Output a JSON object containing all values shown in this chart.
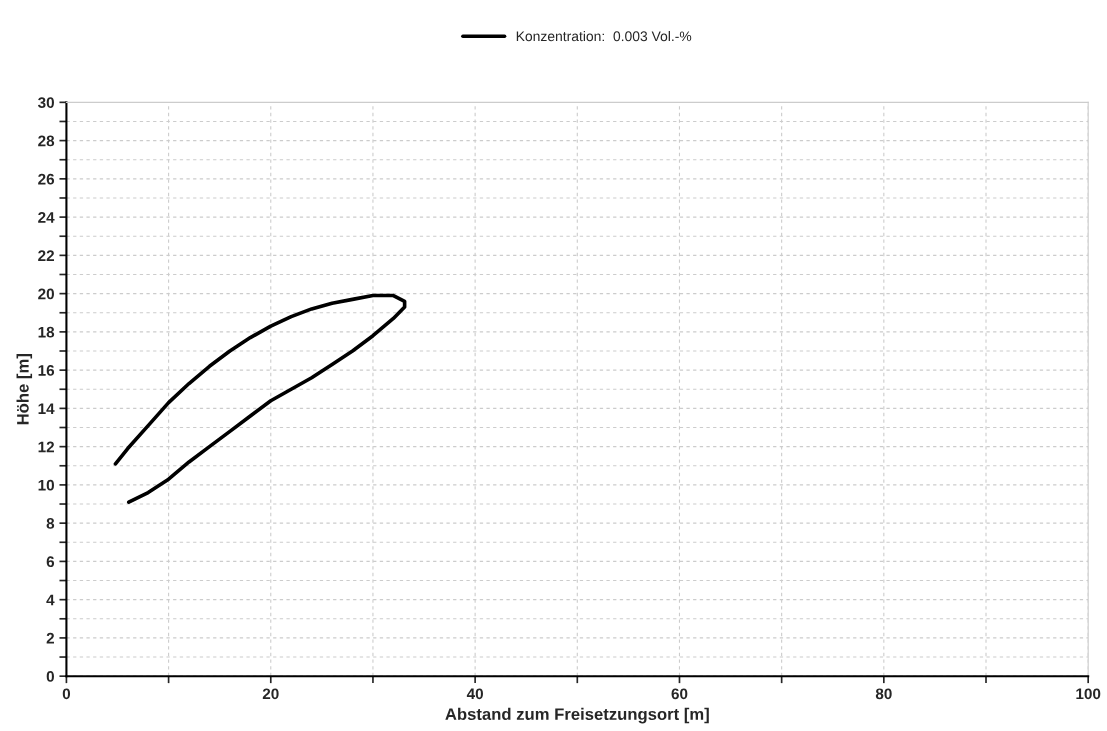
{
  "chart_data": {
    "type": "line",
    "xlabel": "Abstand zum Freisetzungsort [m]",
    "ylabel": "Höhe [m]",
    "series": [
      {
        "name": "Konzentration:  0.003 Vol.-%",
        "color": "#000000",
        "x": [
          4.8,
          6,
          8,
          10,
          12,
          14,
          16,
          18,
          20,
          22,
          24,
          26,
          28,
          30,
          32,
          33.1,
          33.1,
          32,
          30,
          28,
          26,
          24,
          22,
          20,
          18,
          16,
          14,
          12,
          10,
          8,
          6.1
        ],
        "values": [
          11.1,
          11.9,
          13.1,
          14.3,
          15.3,
          16.2,
          17,
          17.7,
          18.3,
          18.8,
          19.2,
          19.5,
          19.7,
          19.9,
          19.9,
          19.6,
          19.3,
          18.7,
          17.8,
          17.0,
          16.3,
          15.6,
          15.0,
          14.4,
          13.6,
          12.8,
          12.0,
          11.2,
          10.3,
          9.6,
          9.1
        ]
      }
    ],
    "xlim": [
      0,
      100
    ],
    "ylim": [
      0,
      30
    ],
    "xticks": [
      0,
      {
        "value": 10,
        "label": null
      },
      20,
      {
        "value": 30,
        "label": null
      },
      40,
      {
        "value": 50,
        "label": null
      },
      60,
      {
        "value": 70,
        "label": null
      },
      80,
      {
        "value": 90,
        "label": null
      },
      100
    ],
    "yticks": [
      0,
      {
        "value": 1,
        "label": null
      },
      2,
      {
        "value": 3,
        "label": null
      },
      4,
      {
        "value": 5,
        "label": null
      },
      6,
      {
        "value": 7,
        "label": null
      },
      8,
      {
        "value": 9,
        "label": null
      },
      10,
      {
        "value": 11,
        "label": null
      },
      12,
      {
        "value": 13,
        "label": null
      },
      14,
      {
        "value": 15,
        "label": null
      },
      16,
      {
        "value": 17,
        "label": null
      },
      18,
      {
        "value": 19,
        "label": null
      },
      20,
      {
        "value": 21,
        "label": null
      },
      22,
      {
        "value": 23,
        "label": null
      },
      24,
      {
        "value": 25,
        "label": null
      },
      26,
      {
        "value": 27,
        "label": null
      },
      28,
      {
        "value": 29,
        "label": null
      },
      30
    ],
    "grid": true,
    "legend": "top",
    "marker": "none",
    "line_style": "solid"
  }
}
